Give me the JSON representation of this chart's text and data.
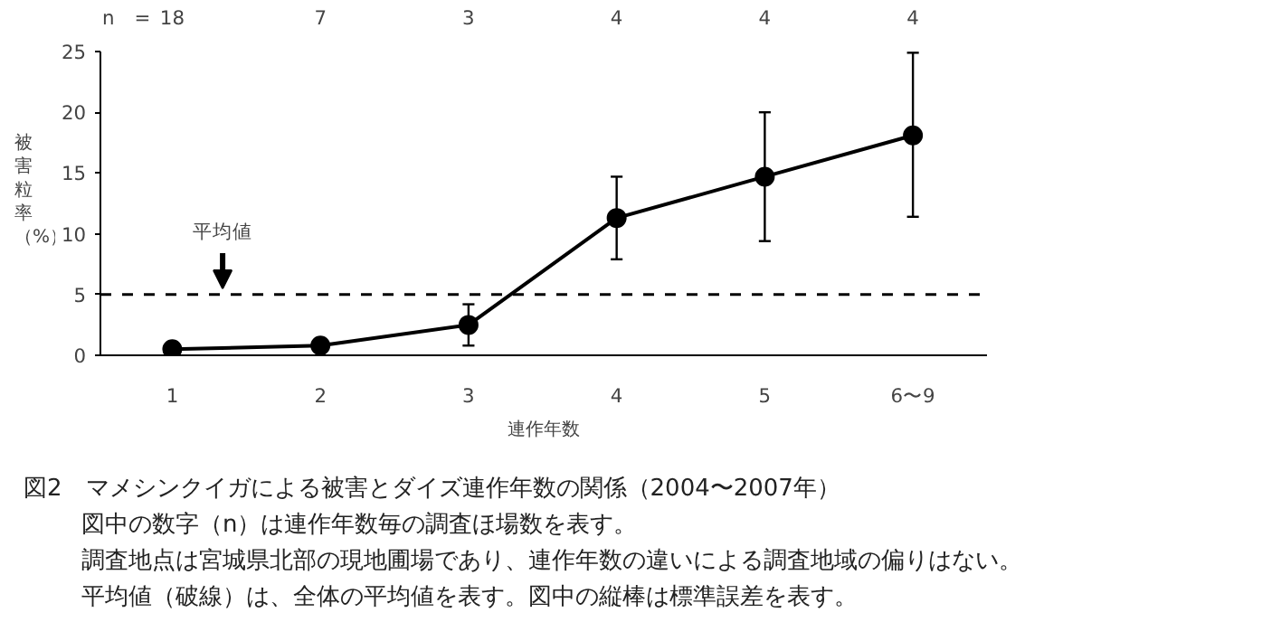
{
  "chart_data": {
    "type": "line",
    "categories": [
      "1",
      "2",
      "3",
      "4",
      "5",
      "6〜9"
    ],
    "xlabel": "連作年数",
    "ylabel": "被害粒率（%）",
    "series": [
      {
        "color": "#000000",
        "values": [
          0.5,
          0.8,
          2.5,
          11.3,
          14.7,
          18.1
        ],
        "errors": [
          null,
          null,
          [
            0.8,
            4.2
          ],
          [
            7.9,
            14.7
          ],
          [
            9.4,
            20.0
          ],
          [
            11.4,
            24.9
          ]
        ]
      }
    ],
    "ylim": [
      0,
      25
    ],
    "yticks": [
      0,
      5,
      10,
      15,
      20,
      25
    ],
    "grid": false,
    "marker": "circle",
    "line_style": "solid",
    "ref_lines": [
      {
        "axis": "y",
        "value": 5,
        "label": "平均値",
        "color": "#000000",
        "line_style": "dashed"
      }
    ],
    "annotations": [
      "n　=",
      "18",
      "7",
      "3",
      "4",
      "4",
      "4",
      "図2　マメシンクイガによる被害とダイズ連作年数の関係（2004〜2007年）",
      "図中の数字（n）は連作年数毎の調査ほ場数を表す。",
      "調査地点は宮城県北部の現地圃場であり、連作年数の違いによる調査地域の偏りはない。",
      "平均値（破線）は、全体の平均値を表す。図中の縦棒は標準誤差を表す。"
    ]
  }
}
